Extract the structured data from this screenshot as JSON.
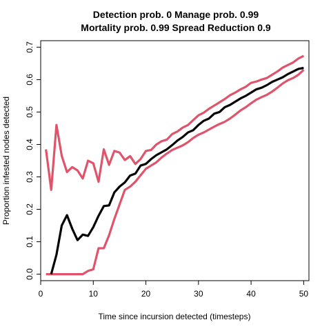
{
  "chart_data": {
    "type": "line",
    "title_line1": "Detection prob. 0 Manage prob. 0.99",
    "title_line2": "Mortality prob. 0.99 Spread Reduction 0.9",
    "xlabel": "Time since incursion detected (timesteps)",
    "ylabel": "Proportion infested nodes detected",
    "xlim": [
      0,
      51
    ],
    "ylim": [
      -0.02,
      0.72
    ],
    "x_ticks": [
      0,
      10,
      20,
      30,
      40,
      50
    ],
    "y_ticks": [
      0.0,
      0.1,
      0.2,
      0.3,
      0.4,
      0.5,
      0.6,
      0.7
    ],
    "x_tick_labels": [
      "0",
      "10",
      "20",
      "30",
      "40",
      "50"
    ],
    "y_tick_labels": [
      "0.0",
      "0.1",
      "0.2",
      "0.3",
      "0.4",
      "0.5",
      "0.6",
      "0.7"
    ],
    "grid": false,
    "series": [
      {
        "color": "#DF536B",
        "style": "upper",
        "x": [
          1,
          2,
          3,
          4,
          5,
          6,
          7,
          8,
          9,
          10,
          11,
          12,
          13,
          14,
          15,
          16,
          17,
          18,
          19,
          20,
          21,
          22,
          23,
          24,
          25,
          26,
          27,
          28,
          29,
          30,
          31,
          32,
          33,
          34,
          35,
          36,
          37,
          38,
          39,
          40,
          41,
          42,
          43,
          44,
          45,
          46,
          47,
          48,
          49,
          50
        ],
        "y": [
          0.385,
          0.26,
          0.46,
          0.365,
          0.315,
          0.33,
          0.32,
          0.295,
          0.35,
          0.342,
          0.285,
          0.385,
          0.337,
          0.38,
          0.375,
          0.352,
          0.364,
          0.34,
          0.355,
          0.38,
          0.383,
          0.4,
          0.41,
          0.415,
          0.432,
          0.44,
          0.452,
          0.46,
          0.475,
          0.49,
          0.498,
          0.51,
          0.52,
          0.53,
          0.54,
          0.552,
          0.56,
          0.57,
          0.578,
          0.59,
          0.594,
          0.6,
          0.605,
          0.615,
          0.625,
          0.637,
          0.645,
          0.653,
          0.665,
          0.673
        ]
      },
      {
        "color": "#DF536B",
        "style": "lower",
        "x": [
          1,
          2,
          3,
          4,
          5,
          6,
          7,
          8,
          9,
          10,
          11,
          12,
          13,
          14,
          15,
          16,
          17,
          18,
          19,
          20,
          21,
          22,
          23,
          24,
          25,
          26,
          27,
          28,
          29,
          30,
          31,
          32,
          33,
          34,
          35,
          36,
          37,
          38,
          39,
          40,
          41,
          42,
          43,
          44,
          45,
          46,
          47,
          48,
          49,
          50
        ],
        "y": [
          0,
          0,
          0,
          0,
          0,
          0,
          0,
          0,
          0.01,
          0.015,
          0.08,
          0.08,
          0.12,
          0.17,
          0.215,
          0.26,
          0.27,
          0.285,
          0.305,
          0.325,
          0.335,
          0.345,
          0.36,
          0.372,
          0.383,
          0.39,
          0.397,
          0.407,
          0.42,
          0.43,
          0.437,
          0.446,
          0.455,
          0.463,
          0.47,
          0.48,
          0.492,
          0.505,
          0.515,
          0.527,
          0.538,
          0.546,
          0.553,
          0.563,
          0.575,
          0.588,
          0.598,
          0.605,
          0.615,
          0.63
        ]
      },
      {
        "color": "#000000",
        "style": "mean",
        "x": [
          2,
          3,
          4,
          5,
          6,
          7,
          8,
          9,
          10,
          11,
          12,
          13,
          14,
          15,
          16,
          17,
          18,
          19,
          20,
          21,
          22,
          23,
          24,
          25,
          26,
          27,
          28,
          29,
          30,
          31,
          32,
          33,
          34,
          35,
          36,
          37,
          38,
          39,
          40,
          41,
          42,
          43,
          44,
          45,
          46,
          47,
          48,
          49,
          50
        ],
        "y": [
          0,
          0.06,
          0.15,
          0.182,
          0.14,
          0.105,
          0.122,
          0.118,
          0.145,
          0.18,
          0.21,
          0.212,
          0.252,
          0.27,
          0.283,
          0.304,
          0.31,
          0.335,
          0.34,
          0.355,
          0.367,
          0.376,
          0.385,
          0.398,
          0.412,
          0.423,
          0.437,
          0.444,
          0.46,
          0.473,
          0.48,
          0.495,
          0.5,
          0.515,
          0.522,
          0.532,
          0.542,
          0.55,
          0.56,
          0.57,
          0.575,
          0.583,
          0.593,
          0.6,
          0.607,
          0.617,
          0.625,
          0.633,
          0.636
        ]
      }
    ]
  }
}
